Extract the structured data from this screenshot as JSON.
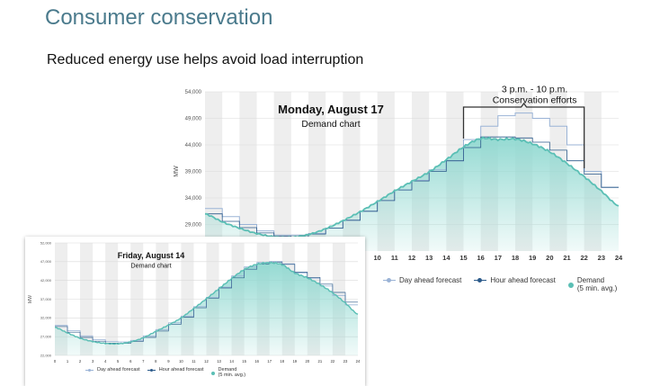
{
  "slide": {
    "title": "Consumer conservation",
    "subtitle": "Reduced energy use helps avoid load interruption"
  },
  "colors": {
    "day_ahead": "#9ab3d6",
    "hour_ahead": "#2b5a8a",
    "demand": "#5bbfb5",
    "demand_fill": "#8fd8d0",
    "stripe": "#eeeeee",
    "title": "#4a7a8c"
  },
  "chart_data": [
    {
      "type": "area",
      "title": "Monday, August 17",
      "subtitle": "Demand chart",
      "ylabel": "MW",
      "xlim": [
        0,
        24
      ],
      "ylim": [
        24000,
        54000
      ],
      "yticks": [
        29000,
        34000,
        39000,
        44000,
        49000,
        54000
      ],
      "ytick_labels": [
        "29,000",
        "34,000",
        "39,000",
        "44,000",
        "49,000",
        "54,000"
      ],
      "xticks_visible": [
        10,
        11,
        12,
        13,
        14,
        15,
        16,
        17,
        18,
        19,
        20,
        21,
        22,
        23,
        24
      ],
      "annotation": {
        "text": "3 p.m. - 10 p.m.\nConservation efforts",
        "x_start": 15,
        "x_end": 22
      },
      "x": [
        0,
        1,
        2,
        3,
        4,
        5,
        6,
        7,
        8,
        9,
        10,
        11,
        12,
        13,
        14,
        15,
        16,
        17,
        18,
        19,
        20,
        21,
        22,
        23,
        24
      ],
      "series": [
        {
          "name": "Day ahead forecast",
          "values": [
            32000,
            30500,
            29000,
            27800,
            27000,
            27000,
            27300,
            28300,
            29800,
            31500,
            33500,
            35500,
            37300,
            39300,
            41000,
            45000,
            47500,
            49500,
            50000,
            49000,
            47500,
            44000,
            39000,
            36000,
            34000
          ]
        },
        {
          "name": "Hour ahead forecast",
          "values": [
            31000,
            29600,
            28400,
            27400,
            26800,
            26700,
            27200,
            28300,
            29800,
            31500,
            33500,
            35500,
            37200,
            39000,
            41000,
            43500,
            45500,
            45500,
            45300,
            44500,
            43000,
            41000,
            38500,
            36000,
            33000
          ]
        },
        {
          "name": "Demand\n(5 min. avg.)",
          "values": [
            31000,
            29500,
            28300,
            27300,
            26700,
            26600,
            27100,
            28200,
            29700,
            31400,
            33300,
            35300,
            37100,
            38900,
            41200,
            43600,
            45200,
            45000,
            45100,
            44200,
            42700,
            40500,
            38000,
            35300,
            32500
          ]
        }
      ]
    },
    {
      "type": "area",
      "title": "Friday, August 14",
      "subtitle": "Demand chart",
      "ylabel": "MW",
      "xlim": [
        0,
        24
      ],
      "ylim": [
        22000,
        52000
      ],
      "yticks": [
        22000,
        27000,
        32000,
        37000,
        42000,
        47000,
        52000
      ],
      "ytick_labels": [
        "22,000",
        "27,000",
        "32,000",
        "37,000",
        "42,000",
        "47,000",
        "52,000"
      ],
      "xticks": [
        0,
        1,
        2,
        3,
        4,
        5,
        6,
        7,
        8,
        9,
        10,
        11,
        12,
        13,
        14,
        15,
        16,
        17,
        18,
        19,
        20,
        21,
        22,
        23,
        24
      ],
      "x": [
        0,
        1,
        2,
        3,
        4,
        5,
        6,
        7,
        8,
        9,
        10,
        11,
        12,
        13,
        14,
        15,
        16,
        17,
        18,
        19,
        20,
        21,
        22,
        23,
        24
      ],
      "series": [
        {
          "name": "Day ahead forecast",
          "values": [
            30000,
            28600,
            27200,
            26200,
            25700,
            25600,
            26000,
            27200,
            28900,
            30700,
            32500,
            35000,
            37500,
            40200,
            43200,
            45600,
            46800,
            47100,
            46400,
            44000,
            42600,
            40500,
            38000,
            35500,
            33500
          ]
        },
        {
          "name": "Hour ahead forecast",
          "values": [
            29700,
            28200,
            26800,
            25800,
            25300,
            25200,
            25700,
            26800,
            28500,
            30300,
            32200,
            34700,
            37300,
            40000,
            42700,
            45000,
            46400,
            46800,
            46300,
            44200,
            42800,
            41000,
            38800,
            36200,
            33300
          ]
        },
        {
          "name": "Demand\n(5 min. avg.)",
          "values": [
            29500,
            28000,
            26600,
            25700,
            25200,
            25100,
            25600,
            26700,
            28400,
            30100,
            32000,
            34500,
            37100,
            39800,
            42500,
            44900,
            46300,
            46700,
            46200,
            44000,
            42700,
            40900,
            38700,
            36000,
            33000
          ]
        }
      ]
    }
  ]
}
